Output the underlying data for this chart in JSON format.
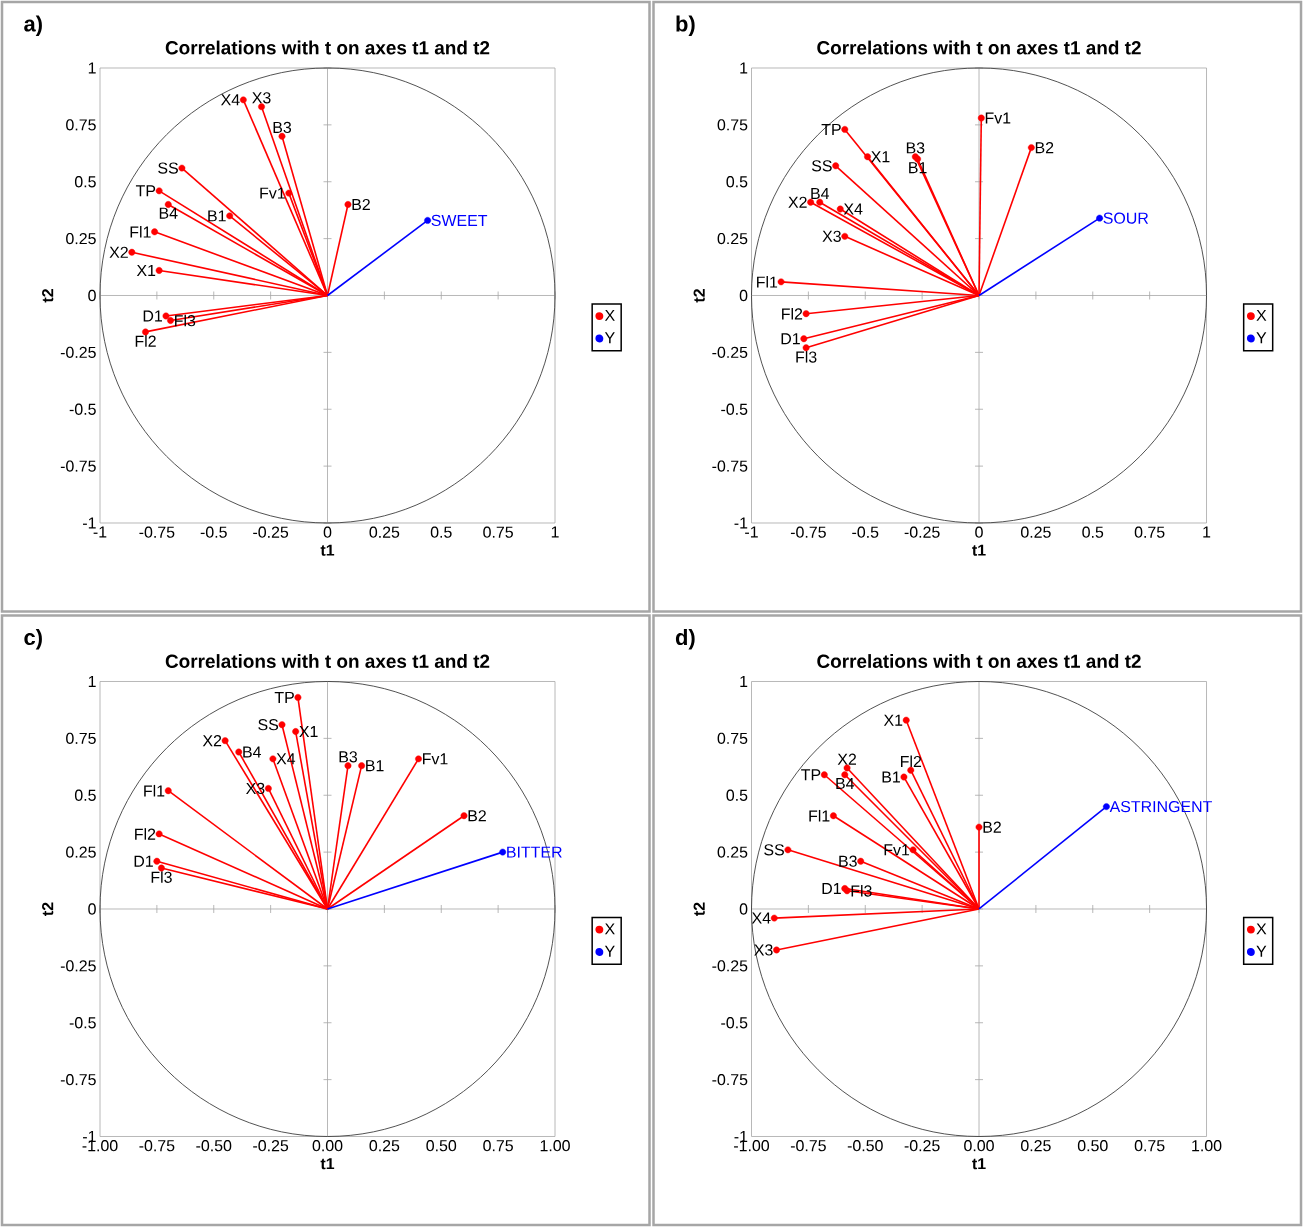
{
  "chart_data": [
    {
      "type": "scatter",
      "title": "Correlations with  t on axes t1 and t2",
      "xlabel": "t1",
      "ylabel": "t2",
      "marker": "circle",
      "legend": "right",
      "xlim": [
        -1,
        1
      ],
      "ylim": [
        -1,
        1
      ],
      "xticks": [
        -1,
        -0.75,
        -0.5,
        -0.25,
        0,
        0.25,
        0.5,
        0.75,
        1
      ],
      "yticks": [
        -1,
        -0.75,
        -0.5,
        -0.25,
        0,
        0.25,
        0.5,
        0.75,
        1
      ],
      "series": [
        {
          "name": "X",
          "type": "lollipop",
          "color": "#ff0000",
          "x": [
            -0.37,
            -0.29,
            -0.2,
            -0.17,
            0.09,
            -0.64,
            -0.74,
            -0.7,
            -0.43,
            -0.76,
            -0.86,
            -0.74,
            -0.71,
            -0.69,
            -0.8
          ],
          "values": [
            0.86,
            0.83,
            0.7,
            0.45,
            0.4,
            0.56,
            0.46,
            0.4,
            0.35,
            0.28,
            0.19,
            0.11,
            -0.09,
            -0.11,
            -0.16
          ]
        },
        {
          "name": "Y",
          "type": "lollipop",
          "color": "#0000ff",
          "x": [
            0.44
          ],
          "values": [
            0.33
          ]
        }
      ],
      "annotations": [
        "a)",
        {
          "text": "X4",
          "x": -0.37,
          "y": 0.86
        },
        {
          "text": "X3",
          "x": -0.29,
          "y": 0.83
        },
        {
          "text": "B3",
          "x": -0.2,
          "y": 0.7
        },
        {
          "text": "Fv1",
          "x": -0.17,
          "y": 0.45
        },
        {
          "text": "B2",
          "x": 0.09,
          "y": 0.4
        },
        {
          "text": "SS",
          "x": -0.64,
          "y": 0.56
        },
        {
          "text": "TP",
          "x": -0.74,
          "y": 0.46
        },
        {
          "text": "B4",
          "x": -0.7,
          "y": 0.4
        },
        {
          "text": "B1",
          "x": -0.43,
          "y": 0.35
        },
        {
          "text": "Fl1",
          "x": -0.76,
          "y": 0.28
        },
        {
          "text": "X2",
          "x": -0.86,
          "y": 0.19
        },
        {
          "text": "X1",
          "x": -0.74,
          "y": 0.11
        },
        {
          "text": "D1",
          "x": -0.71,
          "y": -0.09
        },
        {
          "text": "Fl3",
          "x": -0.69,
          "y": -0.11
        },
        {
          "text": "Fl2",
          "x": -0.8,
          "y": -0.16
        },
        {
          "text": "SWEET",
          "x": 0.44,
          "y": 0.33
        }
      ]
    },
    {
      "type": "scatter",
      "title": "Correlations with  t on axes t1 and t2",
      "xlabel": "t1",
      "ylabel": "t2",
      "marker": "circle",
      "legend": "right",
      "xlim": [
        -1,
        1
      ],
      "ylim": [
        -1,
        1
      ],
      "xticks": [
        -1,
        -0.75,
        -0.5,
        -0.25,
        0,
        0.25,
        0.5,
        0.75,
        1
      ],
      "yticks": [
        -1,
        -0.75,
        -0.5,
        -0.25,
        0,
        0.25,
        0.5,
        0.75,
        1
      ],
      "series": [
        {
          "name": "X",
          "type": "lollipop",
          "color": "#ff0000",
          "x": [
            0.01,
            0.23,
            -0.59,
            -0.63,
            -0.49,
            -0.28,
            -0.27,
            -0.74,
            -0.7,
            -0.61,
            -0.59,
            -0.87,
            -0.76,
            -0.77,
            -0.76
          ],
          "values": [
            0.78,
            0.65,
            0.73,
            0.57,
            0.61,
            0.61,
            0.6,
            0.41,
            0.41,
            0.38,
            0.26,
            0.06,
            -0.08,
            -0.19,
            -0.23
          ]
        },
        {
          "name": "Y",
          "type": "lollipop",
          "color": "#0000ff",
          "x": [
            0.53
          ],
          "values": [
            0.34
          ]
        }
      ],
      "annotations": [
        "b)",
        {
          "text": "Fv1",
          "x": 0.01,
          "y": 0.78
        },
        {
          "text": "B2",
          "x": 0.23,
          "y": 0.65
        },
        {
          "text": "TP",
          "x": -0.59,
          "y": 0.73
        },
        {
          "text": "SS",
          "x": -0.63,
          "y": 0.57
        },
        {
          "text": "X1",
          "x": -0.49,
          "y": 0.61
        },
        {
          "text": "B3",
          "x": -0.28,
          "y": 0.61
        },
        {
          "text": "B1",
          "x": -0.27,
          "y": 0.6
        },
        {
          "text": "X2",
          "x": -0.74,
          "y": 0.41
        },
        {
          "text": "B4",
          "x": -0.7,
          "y": 0.41
        },
        {
          "text": "X4",
          "x": -0.61,
          "y": 0.38
        },
        {
          "text": "X3",
          "x": -0.59,
          "y": 0.26
        },
        {
          "text": "Fl1",
          "x": -0.87,
          "y": 0.06
        },
        {
          "text": "Fl2",
          "x": -0.76,
          "y": -0.08
        },
        {
          "text": "D1",
          "x": -0.77,
          "y": -0.19
        },
        {
          "text": "Fl3",
          "x": -0.76,
          "y": -0.23
        },
        {
          "text": "SOUR",
          "x": 0.53,
          "y": 0.34
        }
      ]
    },
    {
      "type": "scatter",
      "title": "Correlations with  t on axes t1 and t2",
      "xlabel": "t1",
      "ylabel": "t2",
      "marker": "circle",
      "legend": "right",
      "xlim": [
        -1,
        1
      ],
      "ylim": [
        -1,
        1
      ],
      "xticks": [
        {
          "value": -1,
          "label": "-1.00"
        },
        {
          "value": -0.75,
          "label": "-0.75"
        },
        {
          "value": -0.5,
          "label": "-0.50"
        },
        {
          "value": -0.25,
          "label": "-0.25"
        },
        {
          "value": 0,
          "label": "0.00"
        },
        {
          "value": 0.25,
          "label": "0.25"
        },
        {
          "value": 0.5,
          "label": "0.50"
        },
        {
          "value": 0.75,
          "label": "0.75"
        },
        {
          "value": 1,
          "label": "1.00"
        }
      ],
      "yticks": [
        -1,
        -0.75,
        -0.5,
        -0.25,
        0,
        0.25,
        0.5,
        0.75,
        1
      ],
      "series": [
        {
          "name": "X",
          "type": "lollipop",
          "color": "#ff0000",
          "x": [
            -0.13,
            -0.2,
            -0.14,
            -0.45,
            -0.39,
            -0.24,
            -0.26,
            0.09,
            0.15,
            0.4,
            0.6,
            -0.7,
            -0.74,
            -0.75,
            -0.73
          ],
          "values": [
            0.93,
            0.81,
            0.78,
            0.74,
            0.69,
            0.66,
            0.53,
            0.63,
            0.63,
            0.66,
            0.41,
            0.52,
            0.33,
            0.21,
            0.18
          ]
        },
        {
          "name": "Y",
          "type": "lollipop",
          "color": "#0000ff",
          "x": [
            0.77
          ],
          "values": [
            0.25
          ]
        }
      ],
      "annotations": [
        "c)",
        {
          "text": "TP",
          "x": -0.13,
          "y": 0.93
        },
        {
          "text": "SS",
          "x": -0.2,
          "y": 0.81
        },
        {
          "text": "X1",
          "x": -0.14,
          "y": 0.78
        },
        {
          "text": "X2",
          "x": -0.45,
          "y": 0.74
        },
        {
          "text": "B4",
          "x": -0.39,
          "y": 0.69
        },
        {
          "text": "X4",
          "x": -0.24,
          "y": 0.66
        },
        {
          "text": "X3",
          "x": -0.26,
          "y": 0.53
        },
        {
          "text": "B3",
          "x": 0.09,
          "y": 0.63
        },
        {
          "text": "B1",
          "x": 0.15,
          "y": 0.63
        },
        {
          "text": "Fv1",
          "x": 0.4,
          "y": 0.66
        },
        {
          "text": "B2",
          "x": 0.6,
          "y": 0.41
        },
        {
          "text": "Fl1",
          "x": -0.7,
          "y": 0.52
        },
        {
          "text": "Fl2",
          "x": -0.74,
          "y": 0.33
        },
        {
          "text": "D1",
          "x": -0.75,
          "y": 0.21
        },
        {
          "text": "Fl3",
          "x": -0.73,
          "y": 0.18
        },
        {
          "text": "BITTER",
          "x": 0.77,
          "y": 0.25
        }
      ]
    },
    {
      "type": "scatter",
      "title": "Correlations with  t on axes t1 and t2",
      "xlabel": "t1",
      "ylabel": "t2",
      "marker": "circle",
      "legend": "right",
      "xlim": [
        -1,
        1
      ],
      "ylim": [
        -1,
        1
      ],
      "xticks": [
        {
          "value": -1,
          "label": "-1.00"
        },
        {
          "value": -0.75,
          "label": "-0.75"
        },
        {
          "value": -0.5,
          "label": "-0.50"
        },
        {
          "value": -0.25,
          "label": "-0.25"
        },
        {
          "value": 0,
          "label": "0.00"
        },
        {
          "value": 0.25,
          "label": "0.25"
        },
        {
          "value": 0.5,
          "label": "0.50"
        },
        {
          "value": 0.75,
          "label": "0.75"
        },
        {
          "value": 1,
          "label": "1.00"
        }
      ],
      "yticks": [
        -1,
        -0.75,
        -0.5,
        -0.25,
        0,
        0.25,
        0.5,
        0.75,
        1
      ],
      "series": [
        {
          "name": "X",
          "type": "lollipop",
          "color": "#ff0000",
          "x": [
            -0.32,
            -0.58,
            -0.59,
            -0.68,
            -0.3,
            -0.33,
            -0.64,
            0.0,
            -0.29,
            -0.84,
            -0.52,
            -0.59,
            -0.58,
            -0.9,
            -0.89
          ],
          "values": [
            0.83,
            0.62,
            0.59,
            0.59,
            0.61,
            0.58,
            0.41,
            0.36,
            0.26,
            0.26,
            0.21,
            0.09,
            0.08,
            -0.04,
            -0.18
          ]
        },
        {
          "name": "Y",
          "type": "lollipop",
          "color": "#0000ff",
          "x": [
            0.56
          ],
          "values": [
            0.45
          ]
        }
      ],
      "annotations": [
        "d)",
        {
          "text": "X1",
          "x": -0.32,
          "y": 0.83
        },
        {
          "text": "X2",
          "x": -0.58,
          "y": 0.62
        },
        {
          "text": "B4",
          "x": -0.59,
          "y": 0.59
        },
        {
          "text": "TP",
          "x": -0.68,
          "y": 0.59
        },
        {
          "text": "Fl2",
          "x": -0.3,
          "y": 0.61
        },
        {
          "text": "B1",
          "x": -0.33,
          "y": 0.58
        },
        {
          "text": "Fl1",
          "x": -0.64,
          "y": 0.41
        },
        {
          "text": "B2",
          "x": 0.0,
          "y": 0.36
        },
        {
          "text": "Fv1",
          "x": -0.29,
          "y": 0.26
        },
        {
          "text": "SS",
          "x": -0.84,
          "y": 0.26
        },
        {
          "text": "B3",
          "x": -0.52,
          "y": 0.21
        },
        {
          "text": "D1",
          "x": -0.59,
          "y": 0.09
        },
        {
          "text": "Fl3",
          "x": -0.58,
          "y": 0.08
        },
        {
          "text": "X4",
          "x": -0.9,
          "y": -0.04
        },
        {
          "text": "X3",
          "x": -0.89,
          "y": -0.18
        },
        {
          "text": "ASTRINGENT",
          "x": 0.56,
          "y": 0.45
        }
      ]
    }
  ]
}
